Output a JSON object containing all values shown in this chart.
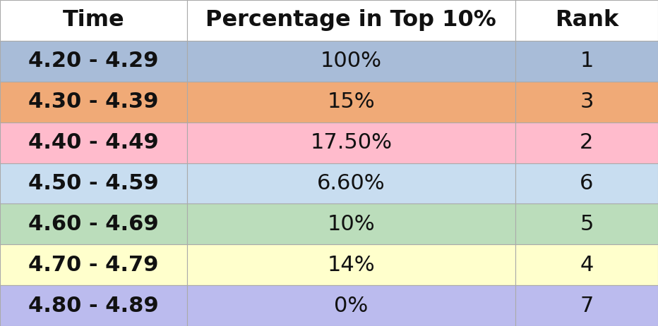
{
  "headers": [
    "Time",
    "Percentage in Top 10%",
    "Rank"
  ],
  "rows": [
    [
      "4.20 - 4.29",
      "100%",
      "1"
    ],
    [
      "4.30 - 4.39",
      "15%",
      "3"
    ],
    [
      "4.40 - 4.49",
      "17.50%",
      "2"
    ],
    [
      "4.50 - 4.59",
      "6.60%",
      "6"
    ],
    [
      "4.60 - 4.69",
      "10%",
      "5"
    ],
    [
      "4.70 - 4.79",
      "14%",
      "4"
    ],
    [
      "4.80 - 4.89",
      "0%",
      "7"
    ]
  ],
  "row_colors": [
    "#a8bcd8",
    "#f0aa77",
    "#ffbbcc",
    "#c8ddf0",
    "#bbddbb",
    "#ffffcc",
    "#bbbbee"
  ],
  "header_color": "#ffffff",
  "header_fontsize": 23,
  "cell_fontsize": 22,
  "background_color": "#ffffff",
  "edge_color": "#aaaaaa",
  "text_color": "#111111"
}
